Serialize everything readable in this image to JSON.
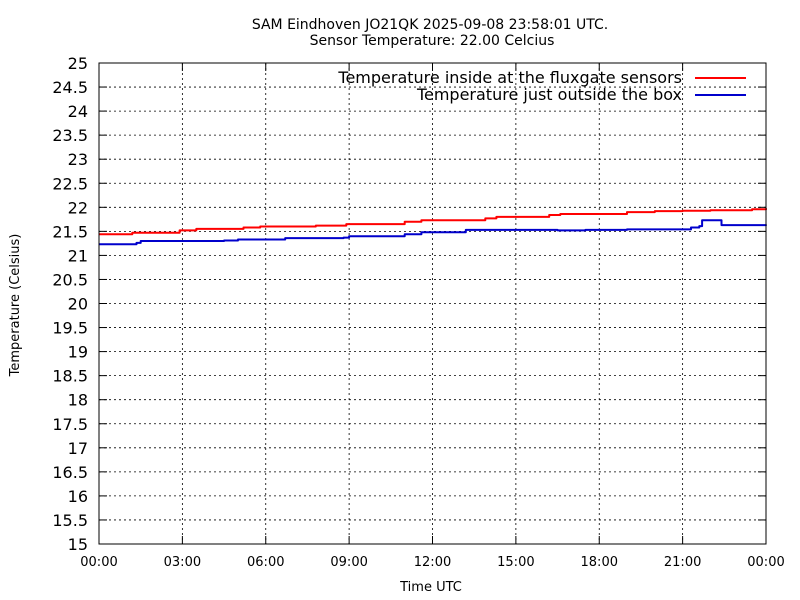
{
  "chart_data": {
    "type": "line",
    "title": "SAM Eindhoven JO21QK 2025-09-08 23:58:01 UTC.",
    "subtitle": "Sensor Temperature: 22.00 Celcius",
    "xlabel": "Time UTC",
    "ylabel": "Temperature (Celsius)",
    "xlim": [
      0,
      24
    ],
    "ylim": [
      15,
      25
    ],
    "grid": true,
    "legend_position": "top-right",
    "x_ticks": [
      {
        "value": 0,
        "label": "00:00"
      },
      {
        "value": 3,
        "label": "03:00"
      },
      {
        "value": 6,
        "label": "06:00"
      },
      {
        "value": 9,
        "label": "09:00"
      },
      {
        "value": 12,
        "label": "12:00"
      },
      {
        "value": 15,
        "label": "15:00"
      },
      {
        "value": 18,
        "label": "18:00"
      },
      {
        "value": 21,
        "label": "21:00"
      },
      {
        "value": 24,
        "label": "00:00"
      }
    ],
    "y_ticks": [
      {
        "value": 15,
        "label": "15"
      },
      {
        "value": 15.5,
        "label": "15.5"
      },
      {
        "value": 16,
        "label": "16"
      },
      {
        "value": 16.5,
        "label": "16.5"
      },
      {
        "value": 17,
        "label": "17"
      },
      {
        "value": 17.5,
        "label": "17.5"
      },
      {
        "value": 18,
        "label": "18"
      },
      {
        "value": 18.5,
        "label": "18.5"
      },
      {
        "value": 19,
        "label": "19"
      },
      {
        "value": 19.5,
        "label": "19.5"
      },
      {
        "value": 20,
        "label": "20"
      },
      {
        "value": 20.5,
        "label": "20.5"
      },
      {
        "value": 21,
        "label": "21"
      },
      {
        "value": 21.5,
        "label": "21.5"
      },
      {
        "value": 22,
        "label": "22"
      },
      {
        "value": 22.5,
        "label": "22.5"
      },
      {
        "value": 23,
        "label": "23"
      },
      {
        "value": 23.5,
        "label": "23.5"
      },
      {
        "value": 24,
        "label": "24"
      },
      {
        "value": 24.5,
        "label": "24.5"
      },
      {
        "value": 25,
        "label": "25"
      }
    ],
    "series": [
      {
        "name": "Temperature inside at the fluxgate sensors",
        "color": "#ff0000",
        "x": [
          0,
          1.2,
          2.9,
          3.5,
          5.2,
          5.8,
          7.8,
          8.9,
          11.0,
          11.6,
          13.9,
          14.3,
          16.2,
          16.6,
          19.0,
          20.0,
          21.0,
          22.0,
          23.5,
          24.0
        ],
        "y": [
          21.44,
          21.47,
          21.52,
          21.55,
          21.58,
          21.6,
          21.62,
          21.65,
          21.7,
          21.73,
          21.77,
          21.8,
          21.84,
          21.86,
          21.9,
          21.92,
          21.93,
          21.94,
          21.96,
          21.98
        ]
      },
      {
        "name": "Temperature just outside the box",
        "color": "#0000cc",
        "x": [
          0,
          1.35,
          1.5,
          4.5,
          5.0,
          6.7,
          8.8,
          9.0,
          11.0,
          11.6,
          12.0,
          13.2,
          16.5,
          17.5,
          19.0,
          21.2,
          21.3,
          21.6,
          21.7,
          22.1,
          22.4,
          24.0
        ],
        "y": [
          21.23,
          21.26,
          21.3,
          21.31,
          21.33,
          21.36,
          21.37,
          21.4,
          21.44,
          21.48,
          21.48,
          21.53,
          21.52,
          21.53,
          21.54,
          21.54,
          21.58,
          21.61,
          21.73,
          21.73,
          21.63,
          21.62
        ]
      }
    ]
  }
}
